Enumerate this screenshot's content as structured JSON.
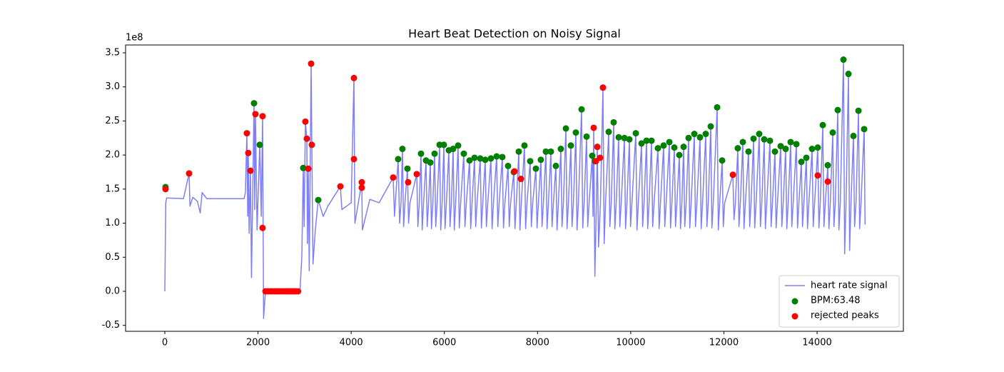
{
  "chart_data": {
    "type": "line",
    "title": "Heart Beat Detection on Noisy Signal",
    "y_offset_label": "1e8",
    "xlim": [
      -842,
      15852
    ],
    "ylim": [
      -0.587,
      3.615
    ],
    "xticks": [
      0,
      2000,
      4000,
      6000,
      8000,
      10000,
      12000,
      14000
    ],
    "yticks": [
      -0.5,
      {
        "value": 0,
        "label": "0.0"
      },
      0.5,
      {
        "value": 1,
        "label": "1.0"
      },
      1.5,
      {
        "value": 2,
        "label": "2.0"
      },
      2.5,
      {
        "value": 3,
        "label": "3.0"
      },
      3.5
    ],
    "legend": "lower right",
    "series": [
      {
        "name": "heart rate signal",
        "type": "line",
        "color": "#7f7ff7",
        "x": [
          0,
          20,
          40,
          400,
          521,
          540,
          600,
          700,
          760,
          800,
          900,
          1700,
          1730,
          1761,
          1780,
          1792,
          1810,
          1838,
          1860,
          1915,
          1930,
          1945,
          1980,
          2037,
          2070,
          2098,
          2120,
          2160,
          2900,
          2940,
          2971,
          2990,
          3017,
          3048,
          3060,
          3079,
          3100,
          3140,
          3155,
          3180,
          3230,
          3293,
          3400,
          3500,
          3768,
          3800,
          4000,
          4059,
          4080,
          4227,
          4240,
          4400,
          4600,
          4901,
          4930,
          5008,
          5040,
          5070,
          5100,
          5125,
          5155,
          5207,
          5232,
          5262,
          5407,
          5432,
          5462,
          5499,
          5524,
          5554,
          5606,
          5631,
          5661,
          5698,
          5723,
          5753,
          5790,
          5815,
          5845,
          5897,
          5922,
          5952,
          5989,
          6014,
          6044,
          6096,
          6121,
          6151,
          6188,
          6213,
          6243,
          6295,
          6320,
          6350,
          6417,
          6442,
          6472,
          6540,
          6565,
          6595,
          6647,
          6672,
          6702,
          6770,
          6795,
          6825,
          6877,
          6902,
          6932,
          6999,
          7024,
          7054,
          7122,
          7147,
          7177,
          7244,
          7269,
          7299,
          7367,
          7392,
          7422,
          7490,
          7515,
          7545,
          7597,
          7622,
          7652,
          7719,
          7744,
          7774,
          7842,
          7867,
          7897,
          7964,
          7989,
          8019,
          8071,
          8096,
          8126,
          8179,
          8204,
          8234,
          8286,
          8311,
          8341,
          8393,
          8418,
          8448,
          8500,
          8525,
          8555,
          8608,
          8633,
          8663,
          8715,
          8740,
          8770,
          8822,
          8847,
          8877,
          8945,
          8970,
          9000,
          9052,
          9077,
          9107,
          9174,
          9190,
          9205,
          9230,
          9260,
          9282,
          9310,
          9350,
          9404,
          9430,
          9460,
          9527,
          9552,
          9582,
          9634,
          9659,
          9689,
          9741,
          9766,
          9796,
          9864,
          9889,
          9919,
          9971,
          9996,
          10026,
          10109,
          10134,
          10164,
          10231,
          10256,
          10286,
          10339,
          10364,
          10394,
          10446,
          10471,
          10501,
          10584,
          10609,
          10639,
          10706,
          10731,
          10761,
          10829,
          10854,
          10884,
          10936,
          10961,
          10991,
          11043,
          11068,
          11098,
          11135,
          11160,
          11190,
          11242,
          11267,
          11297,
          11365,
          11390,
          11420,
          11487,
          11512,
          11542,
          11610,
          11635,
          11665,
          11717,
          11742,
          11772,
          11855,
          11880,
          11910,
          11962,
          11987,
          12017,
          12192,
          12217,
          12247,
          12298,
          12323,
          12353,
          12406,
          12431,
          12461,
          12528,
          12553,
          12583,
          12636,
          12661,
          12691,
          12758,
          12783,
          12813,
          12865,
          12890,
          12920,
          12988,
          13013,
          13043,
          13095,
          13120,
          13150,
          13218,
          13243,
          13273,
          13325,
          13350,
          13380,
          13432,
          13457,
          13487,
          13555,
          13580,
          13610,
          13662,
          13687,
          13717,
          13769,
          13794,
          13824,
          13892,
          13917,
          13947,
          14014,
          14039,
          14069,
          14122,
          14147,
          14177,
          14229,
          14254,
          14284,
          14336,
          14361,
          14391,
          14443,
          14468,
          14498,
          14566,
          14591,
          14621,
          14673,
          14698,
          14728,
          14780,
          14805,
          14835,
          14888,
          14913,
          14943,
          15010,
          15030
        ],
        "values": [
          0.0,
          1.3,
          1.37,
          1.36,
          1.73,
          1.25,
          1.38,
          1.32,
          1.15,
          1.45,
          1.36,
          1.36,
          1.45,
          2.32,
          1.1,
          2.03,
          0.85,
          1.77,
          0.2,
          2.76,
          1.2,
          2.6,
          0.9,
          2.15,
          1.1,
          2.57,
          -0.4,
          0.0,
          0.0,
          0.5,
          1.81,
          0.95,
          2.49,
          2.24,
          0.7,
          1.8,
          0.3,
          3.34,
          2.15,
          0.4,
          0.9,
          1.34,
          1.1,
          1.25,
          1.54,
          1.2,
          1.3,
          3.13,
          1.0,
          1.6,
          0.9,
          1.35,
          1.3,
          1.67,
          1.1,
          1.94,
          1.0,
          1.3,
          2.09,
          0.95,
          1.3,
          1.8,
          1.0,
          1.3,
          1.72,
          0.95,
          1.3,
          2.02,
          0.9,
          1.3,
          1.92,
          0.95,
          1.3,
          1.89,
          0.92,
          1.3,
          2.02,
          0.95,
          1.3,
          2.15,
          0.9,
          1.3,
          2.15,
          0.92,
          1.3,
          2.07,
          0.95,
          1.3,
          2.09,
          0.9,
          1.3,
          2.14,
          0.93,
          1.3,
          2.02,
          0.95,
          1.3,
          1.92,
          0.92,
          1.3,
          1.96,
          0.95,
          1.3,
          1.95,
          0.93,
          1.3,
          1.93,
          0.95,
          1.3,
          1.95,
          0.92,
          1.3,
          1.98,
          0.95,
          1.3,
          1.97,
          0.93,
          1.3,
          1.84,
          0.95,
          1.3,
          1.75,
          0.92,
          1.3,
          2.05,
          0.9,
          1.3,
          2.14,
          0.92,
          1.3,
          1.91,
          0.95,
          1.3,
          1.8,
          0.93,
          1.3,
          1.93,
          0.95,
          1.3,
          2.05,
          0.92,
          1.3,
          2.05,
          0.95,
          1.3,
          1.84,
          0.9,
          1.3,
          2.09,
          0.95,
          1.3,
          2.39,
          0.92,
          1.3,
          2.14,
          0.95,
          1.3,
          2.33,
          0.9,
          1.3,
          2.67,
          0.93,
          1.3,
          2.27,
          0.95,
          1.3,
          1.99,
          1.1,
          2.4,
          0.22,
          1.2,
          2.12,
          0.65,
          1.3,
          2.99,
          0.7,
          1.3,
          2.34,
          0.95,
          1.3,
          2.48,
          0.92,
          1.3,
          2.26,
          0.95,
          1.3,
          2.25,
          0.92,
          1.3,
          2.23,
          0.95,
          1.3,
          2.32,
          0.9,
          1.3,
          2.17,
          0.95,
          1.3,
          2.21,
          0.92,
          1.3,
          2.21,
          0.95,
          1.3,
          2.1,
          0.92,
          1.3,
          2.14,
          0.95,
          1.3,
          2.19,
          0.93,
          1.3,
          2.11,
          0.95,
          1.3,
          2.0,
          0.92,
          1.3,
          2.12,
          0.95,
          1.3,
          2.25,
          0.93,
          1.3,
          2.31,
          0.95,
          1.3,
          2.26,
          0.92,
          1.3,
          2.31,
          0.95,
          1.3,
          2.42,
          0.93,
          1.3,
          2.7,
          0.9,
          1.3,
          1.92,
          0.95,
          1.3,
          1.71,
          1.05,
          1.3,
          2.1,
          0.95,
          1.3,
          2.19,
          0.92,
          1.3,
          2.05,
          0.95,
          1.3,
          2.24,
          0.93,
          1.3,
          2.31,
          0.95,
          1.3,
          2.23,
          0.92,
          1.3,
          2.21,
          0.95,
          1.3,
          2.05,
          0.93,
          1.3,
          2.13,
          0.95,
          1.3,
          2.09,
          0.92,
          1.3,
          2.19,
          0.95,
          1.3,
          2.16,
          0.93,
          1.3,
          1.9,
          0.95,
          1.3,
          1.96,
          0.92,
          1.3,
          2.09,
          0.95,
          1.3,
          2.11,
          0.93,
          1.3,
          2.44,
          0.95,
          1.3,
          1.85,
          0.92,
          1.3,
          2.33,
          0.95,
          1.3,
          2.66,
          0.9,
          1.3,
          3.4,
          0.55,
          1.3,
          3.19,
          0.6,
          1.3,
          2.28,
          0.95,
          1.3,
          2.65,
          0.92,
          1.3,
          2.38,
          0.98
        ]
      },
      {
        "name": "BPM:63.48",
        "type": "scatter",
        "color": "#008000",
        "x": [
          15,
          1915,
          2037,
          2971,
          3293,
          5008,
          5100,
          5207,
          5499,
          5606,
          5698,
          5790,
          5897,
          5989,
          6096,
          6188,
          6295,
          6417,
          6540,
          6647,
          6770,
          6877,
          6999,
          7122,
          7244,
          7367,
          7490,
          7597,
          7719,
          7842,
          7964,
          8071,
          8179,
          8286,
          8393,
          8500,
          8608,
          8715,
          8822,
          8945,
          9052,
          9174,
          9235,
          9527,
          9634,
          9741,
          9864,
          9971,
          10109,
          10231,
          10339,
          10446,
          10584,
          10706,
          10829,
          10936,
          11043,
          11135,
          11242,
          11365,
          11487,
          11610,
          11717,
          11855,
          11962,
          12298,
          12406,
          12528,
          12636,
          12758,
          12865,
          12988,
          13095,
          13218,
          13325,
          13432,
          13555,
          13662,
          13769,
          13892,
          14014,
          14122,
          14229,
          14336,
          14443,
          14566,
          14673,
          14780,
          14888,
          15010
        ],
        "values": [
          1.53,
          2.76,
          2.15,
          1.81,
          1.34,
          1.94,
          2.09,
          1.8,
          2.02,
          1.92,
          1.89,
          2.02,
          2.15,
          2.15,
          2.07,
          2.09,
          2.14,
          2.02,
          1.92,
          1.96,
          1.95,
          1.93,
          1.95,
          1.98,
          1.97,
          1.84,
          1.75,
          2.05,
          2.14,
          1.91,
          1.8,
          1.93,
          2.05,
          2.05,
          1.84,
          2.09,
          2.39,
          2.14,
          2.33,
          2.67,
          2.27,
          1.99,
          1.91,
          2.34,
          2.48,
          2.26,
          2.25,
          2.23,
          2.32,
          2.17,
          2.21,
          2.21,
          2.1,
          2.14,
          2.19,
          2.11,
          2.0,
          2.12,
          2.25,
          2.31,
          2.26,
          2.31,
          2.42,
          2.7,
          1.92,
          2.1,
          2.19,
          2.05,
          2.24,
          2.31,
          2.23,
          2.21,
          2.05,
          2.13,
          2.09,
          2.19,
          2.16,
          1.9,
          1.96,
          2.09,
          2.11,
          2.44,
          1.85,
          2.33,
          2.66,
          3.4,
          3.19,
          2.28,
          2.65,
          2.38
        ]
      },
      {
        "name": "rejected peaks",
        "type": "scatter",
        "color": "#ff0000",
        "x": [
          15,
          521,
          1761,
          1792,
          1838,
          1945,
          2098,
          2098,
          2160,
          2210,
          2260,
          2310,
          2360,
          2410,
          2460,
          2510,
          2560,
          2610,
          2660,
          2710,
          2760,
          2810,
          2860,
          3017,
          3048,
          3079,
          3140,
          3155,
          3768,
          4059,
          4059,
          4227,
          4227,
          4901,
          5223,
          5407,
          7505,
          7643,
          9205,
          9251,
          9282,
          9343,
          9404,
          12192,
          14014,
          14229
        ],
        "values": [
          1.5,
          1.73,
          2.32,
          2.03,
          1.77,
          2.6,
          2.57,
          0.93,
          0.0,
          0.0,
          0.0,
          0.0,
          0.0,
          0.0,
          0.0,
          0.0,
          0.0,
          0.0,
          0.0,
          0.0,
          0.0,
          0.0,
          0.0,
          2.49,
          2.24,
          1.8,
          3.34,
          2.15,
          1.54,
          3.13,
          1.94,
          1.6,
          1.52,
          1.67,
          1.6,
          1.72,
          1.76,
          1.65,
          2.4,
          1.91,
          2.12,
          1.96,
          2.99,
          1.71,
          1.7,
          1.61
        ]
      }
    ]
  }
}
